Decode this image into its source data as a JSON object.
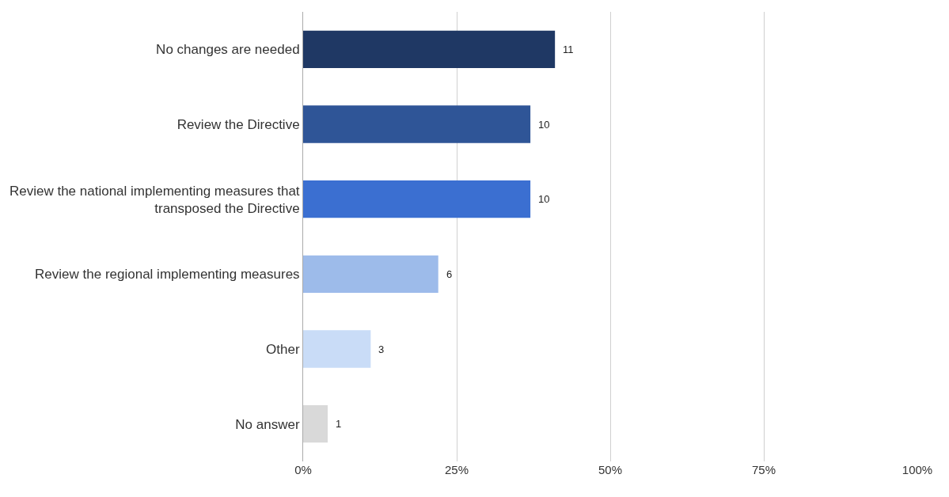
{
  "chart_data": {
    "type": "bar",
    "orientation": "horizontal",
    "categories": [
      "No changes are needed",
      "Review the Directive",
      "Review the national implementing measures that transposed the Directive",
      "Review the regional implementing measures",
      "Other",
      "No answer"
    ],
    "values": [
      41,
      37,
      37,
      22,
      11,
      4
    ],
    "annotations": [
      {
        "text": "11",
        "x": 41,
        "y": "No changes are needed"
      },
      {
        "text": "10",
        "x": 37,
        "y": "Review the Directive"
      },
      {
        "text": "10",
        "x": 37,
        "y": "Review the national implementing measures that transposed the Directive"
      },
      {
        "text": "6",
        "x": 22,
        "y": "Review the regional implementing measures"
      },
      {
        "text": "3",
        "x": 11,
        "y": "Other"
      },
      {
        "text": "1",
        "x": 4,
        "y": "No answer"
      }
    ],
    "colors": [
      "#1f3864",
      "#2f5597",
      "#3b6fd1",
      "#9dbbea",
      "#c9dcf7",
      "#d9d9d9"
    ],
    "xlim": [
      0,
      100
    ],
    "xticks": [
      {
        "value": 0,
        "label": "0%"
      },
      {
        "value": 25,
        "label": "25%"
      },
      {
        "value": 50,
        "label": "50%"
      },
      {
        "value": 75,
        "label": "75%"
      },
      {
        "value": 100,
        "label": "100%"
      }
    ],
    "grid": "x"
  }
}
